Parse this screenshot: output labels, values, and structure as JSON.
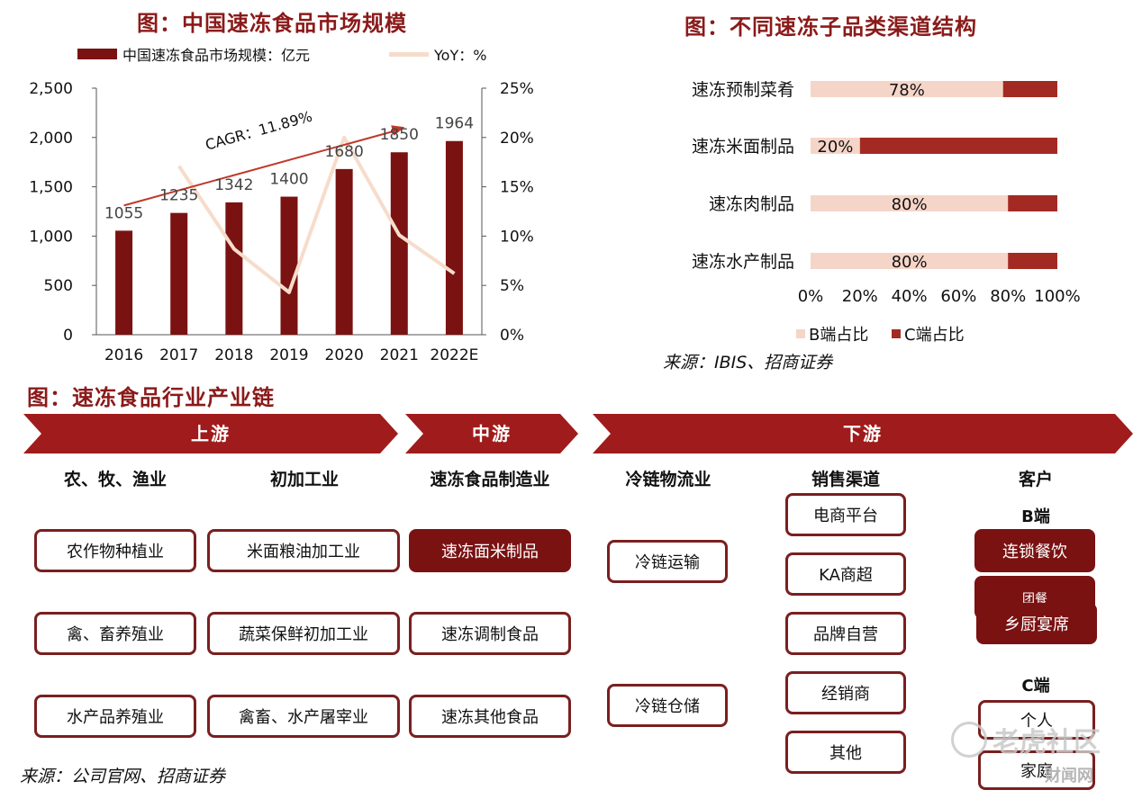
{
  "chart_left": {
    "title": "图：中国速冻食品市场规模",
    "legend_bar": "中国速冻食品市场规模：亿元",
    "legend_line": "YoY：%",
    "cagr_label": "CAGR：11.89%"
  },
  "chart_right": {
    "title": "图：不同速冻子品类渠道结构",
    "legend_b": "B端占比",
    "legend_c": "C端占比",
    "source": "来源：IBIS、招商证券"
  },
  "chain": {
    "title": "图：速冻食品行业产业链",
    "upstream": "上游",
    "midstream": "中游",
    "downstream": "下游",
    "col_agri": "农、牧、渔业",
    "col_primary": "初加工业",
    "col_mfg": "速冻食品制造业",
    "col_logistics": "冷链物流业",
    "col_channels": "销售渠道",
    "col_customers": "客户",
    "agri_items": [
      "农作物种植业",
      "禽、畜养殖业",
      "水产品养殖业"
    ],
    "primary_items": [
      "米面粮油加工业",
      "蔬菜保鲜初加工业",
      "禽畜、水产屠宰业"
    ],
    "mfg_items": [
      "速冻面米制品",
      "速冻调制食品",
      "速冻其他食品"
    ],
    "logistics_items": [
      "冷链运输",
      "冷链仓储"
    ],
    "channel_items": [
      "电商平台",
      "KA商超",
      "品牌自营",
      "经销商",
      "其他"
    ],
    "b_label": "B端",
    "b_items": [
      "连锁餐饮",
      "团餐",
      "乡厨宴席"
    ],
    "c_label": "C端",
    "c_items": [
      "个人",
      "家庭"
    ],
    "source": "来源：公司官网、招商证券"
  },
  "watermark": {
    "text1": "老虎社区",
    "text2": "财闻网"
  },
  "colors": {
    "bar": "#7A1212",
    "line": "#F7DCCB",
    "cagr": "#C0392B",
    "b_share": "#F6D5C9",
    "c_share": "#A32A23",
    "title": "#8B1A1A"
  },
  "chart_data": [
    {
      "type": "bar",
      "categories": [
        "2016",
        "2017",
        "2018",
        "2019",
        "2020",
        "2021",
        "2022E"
      ],
      "series": [
        {
          "name": "中国速冻食品市场规模：亿元",
          "type": "bar",
          "axis": "left",
          "values": [
            1055,
            1235,
            1342,
            1400,
            1680,
            1850,
            1964
          ]
        },
        {
          "name": "YoY：%",
          "type": "line",
          "axis": "right",
          "values": [
            null,
            17.1,
            8.7,
            4.3,
            20.0,
            10.1,
            6.2
          ]
        }
      ],
      "ylim": [
        0,
        2500
      ],
      "yticks": [
        "0",
        "500",
        "1,000",
        "1,500",
        "2,000",
        "2,500"
      ],
      "y2lim": [
        0,
        25
      ],
      "y2ticks": [
        "0%",
        "5%",
        "10%",
        "15%",
        "20%",
        "25%"
      ],
      "data_labels": [
        "1055",
        "1235",
        "1342",
        "1400",
        "1680",
        "1850",
        "1964"
      ],
      "annotation": "CAGR：11.89%",
      "legend": "top"
    },
    {
      "type": "bar",
      "orientation": "horizontal-stacked",
      "categories": [
        "速冻预制菜肴",
        "速冻米面制品",
        "速冻肉制品",
        "速冻水产制品"
      ],
      "series": [
        {
          "name": "B端占比",
          "values": [
            78,
            20,
            80,
            80
          ],
          "labels": [
            "78%",
            "20%",
            "80%",
            "80%"
          ]
        },
        {
          "name": "C端占比",
          "values": [
            22,
            80,
            20,
            20
          ]
        }
      ],
      "xlim": [
        0,
        100
      ],
      "xticks": [
        "0%",
        "20%",
        "40%",
        "60%",
        "80%",
        "100%"
      ],
      "legend": "bottom"
    }
  ]
}
